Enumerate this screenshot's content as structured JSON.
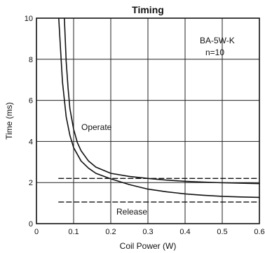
{
  "chart_data": {
    "type": "line",
    "title": "Timing",
    "xlabel": "Coil Power (W)",
    "ylabel": "Time (ms)",
    "xlim": [
      0,
      0.6
    ],
    "ylim": [
      0,
      10
    ],
    "x_ticks": [
      0,
      0.1,
      0.2,
      0.3,
      0.4,
      0.5,
      0.6
    ],
    "x_tick_labels": [
      "0",
      "0.1",
      "0.2",
      "0.3",
      "0.4",
      "0.5",
      "0.6"
    ],
    "y_ticks": [
      0,
      2,
      4,
      6,
      8,
      10
    ],
    "y_tick_labels": [
      "0",
      "2",
      "4",
      "6",
      "8",
      "10"
    ],
    "grid": true,
    "grid_lines": "vertical-and-horizontal-at-major-ticks",
    "annotations": {
      "model": "BA-5W-K",
      "sample_size": "n=10",
      "operate_label": "Operate",
      "release_label": "Release"
    },
    "series": [
      {
        "name": "Operate",
        "group": "operate",
        "style": "solid",
        "x": [
          0.06,
          0.065,
          0.07,
          0.08,
          0.09,
          0.1,
          0.12,
          0.14,
          0.16,
          0.2,
          0.25,
          0.3,
          0.35,
          0.4,
          0.45,
          0.5,
          0.55,
          0.6
        ],
        "y": [
          10,
          8.4,
          6.9,
          5.2,
          4.3,
          3.7,
          3.05,
          2.7,
          2.45,
          2.18,
          1.9,
          1.68,
          1.55,
          1.45,
          1.38,
          1.33,
          1.3,
          1.28
        ]
      },
      {
        "name": "",
        "group": "operate",
        "style": "solid",
        "x": [
          0.075,
          0.078,
          0.08,
          0.085,
          0.09,
          0.1,
          0.11,
          0.12,
          0.14,
          0.16,
          0.2,
          0.25,
          0.3,
          0.35,
          0.4,
          0.45,
          0.5,
          0.55,
          0.6
        ],
        "y": [
          10,
          8.8,
          7.9,
          6.6,
          5.6,
          4.6,
          3.95,
          3.55,
          3.05,
          2.75,
          2.45,
          2.3,
          2.2,
          2.12,
          2.06,
          2.02,
          1.99,
          1.97,
          1.95
        ]
      },
      {
        "name": "Release",
        "group": "release",
        "style": "dashed",
        "x": [
          0.06,
          0.6
        ],
        "y": [
          2.2,
          2.2
        ]
      },
      {
        "name": "",
        "group": "release",
        "style": "dashed",
        "x": [
          0.06,
          0.6
        ],
        "y": [
          1.05,
          1.05
        ]
      }
    ]
  }
}
